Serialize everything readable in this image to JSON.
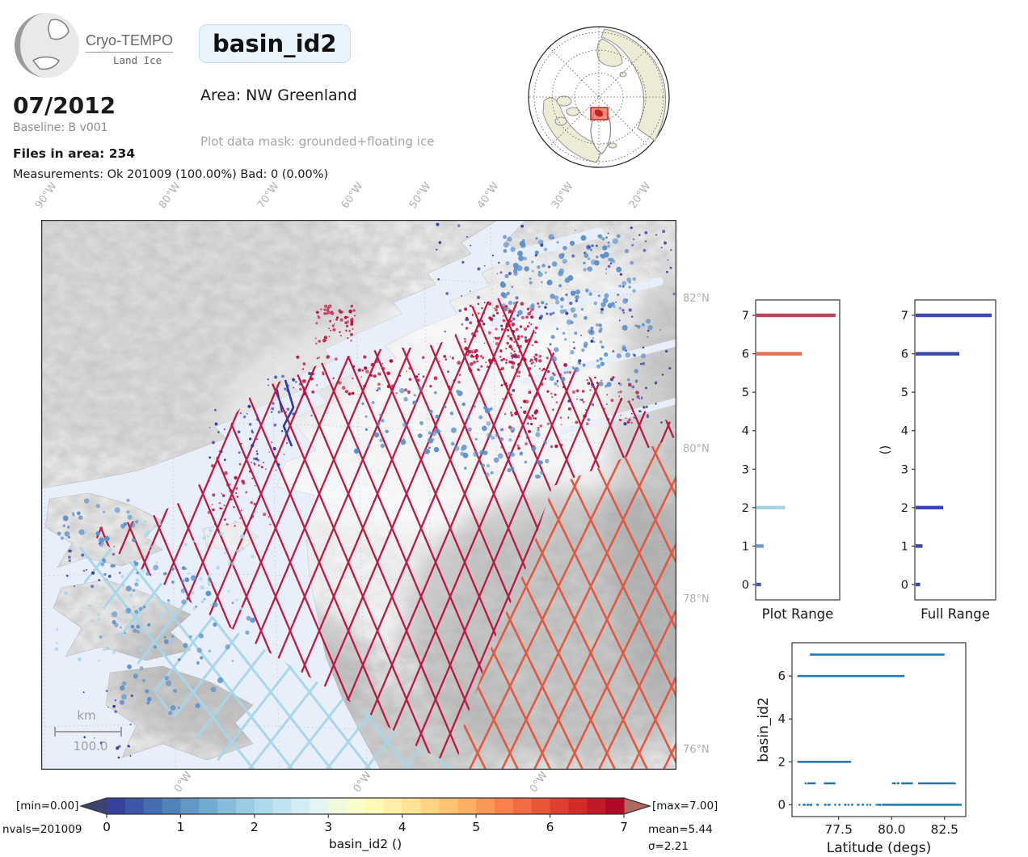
{
  "header": {
    "logo_title": "Cryo-TEMPO",
    "logo_subtitle": "Land Ice",
    "variable_name": "basin_id2",
    "date": "07/2012",
    "baseline": "Baseline: B v001",
    "files_in_area": "Files in area: 234",
    "measurements": "Measurements: Ok 201009 (100.00%) Bad: 0 (0.00%)",
    "area": "Area: NW Greenland",
    "plot_mask": "Plot data mask: grounded+floating ice"
  },
  "map": {
    "top_longitude_labels": [
      "90°W",
      "80°W",
      "70°W",
      "60°W",
      "50°W",
      "40°W",
      "30°W",
      "20°W"
    ],
    "bottom_longitude_labels": [
      "0°W",
      "0°W",
      "0°W"
    ],
    "latitude_labels": [
      "82°N",
      "80°N",
      "78°N",
      "76°N"
    ],
    "scalebar_unit": "km",
    "scalebar_value": "100.0",
    "ocean_color": "#e9effa",
    "track_colors": {
      "basin7": "#bb0f3a",
      "basin6": "#e65239",
      "basin2": "#a7d6e9",
      "basin1": "#5b8fcc",
      "basin0": "#3039a8"
    }
  },
  "colorbar": {
    "label": "basin_id2 ()",
    "ticks": [
      "0",
      "1",
      "2",
      "3",
      "4",
      "5",
      "6",
      "7"
    ],
    "min_label": "[min=0.00]",
    "max_label": "[max=7.00]",
    "nvals_label": "nvals=201009",
    "mean_label": "mean=5.44",
    "sigma_label": "σ=2.21",
    "cmap_anchors": [
      "#313695",
      "#4575b4",
      "#74add1",
      "#abd9e9",
      "#e0f3f8",
      "#ffffbf",
      "#fee090",
      "#fdae61",
      "#f46d43",
      "#d73027",
      "#a50026"
    ],
    "n_cells": 28,
    "under_color": "#3d436f",
    "over_color": "#b2685f"
  },
  "chart_data": [
    {
      "type": "bar",
      "orientation": "horizontal",
      "xlabel": "Plot Range",
      "ylim": [
        -0.4,
        7.4
      ],
      "yticks": [
        0,
        1,
        2,
        3,
        4,
        5,
        6,
        7
      ],
      "bars": [
        {
          "value": 7,
          "length_frac": 0.94,
          "color": "#b44457"
        },
        {
          "value": 6,
          "length_frac": 0.54,
          "color": "#e76f55"
        },
        {
          "value": 2,
          "length_frac": 0.34,
          "color": "#a6d2e6"
        },
        {
          "value": 1,
          "length_frac": 0.085,
          "color": "#6f99cd"
        },
        {
          "value": 0,
          "length_frac": 0.055,
          "color": "#4a55b0"
        }
      ]
    },
    {
      "type": "bar",
      "orientation": "horizontal",
      "xlabel": "Full Range",
      "ylabel": "()",
      "ylim": [
        -0.4,
        7.4
      ],
      "yticks": [
        0,
        1,
        2,
        3,
        4,
        5,
        6,
        7
      ],
      "bars": [
        {
          "value": 7,
          "length_frac": 0.94,
          "color": "#3c47ad"
        },
        {
          "value": 6,
          "length_frac": 0.54,
          "color": "#3c47ad"
        },
        {
          "value": 2,
          "length_frac": 0.34,
          "color": "#3c47ad"
        },
        {
          "value": 1,
          "length_frac": 0.085,
          "color": "#3c47ad"
        },
        {
          "value": 0,
          "length_frac": 0.055,
          "color": "#3c47ad"
        }
      ]
    },
    {
      "type": "scatter",
      "xlabel": "Latitude (degs)",
      "ylabel": "basin_id2",
      "xlim": [
        75.3,
        83.5
      ],
      "ylim": [
        -0.55,
        7.55
      ],
      "xticks": [
        77.5,
        80.0,
        82.5
      ],
      "yticks": [
        0,
        2,
        4,
        6
      ],
      "marker_color": "#2077b4",
      "series": [
        {
          "basin": 7,
          "dense": [
            [
              76.35,
              82.5
            ]
          ],
          "sparse": [
            [
              76.15,
              76.35
            ]
          ]
        },
        {
          "basin": 6,
          "dense": [
            [
              75.6,
              80.6
            ]
          ],
          "sparse": []
        },
        {
          "basin": 2,
          "dense": [
            [
              75.6,
              78.1
            ]
          ],
          "sparse": []
        },
        {
          "basin": 1,
          "dense": [
            [
              76.85,
              77.35
            ],
            [
              80.5,
              81.0
            ],
            [
              81.3,
              83.0
            ]
          ],
          "sparse": [
            [
              75.9,
              76.6
            ],
            [
              80.05,
              80.4
            ]
          ]
        },
        {
          "basin": 0,
          "dense": [
            [
              79.6,
              83.3
            ]
          ],
          "sparse": [
            [
              75.6,
              79.5
            ]
          ]
        }
      ]
    }
  ]
}
